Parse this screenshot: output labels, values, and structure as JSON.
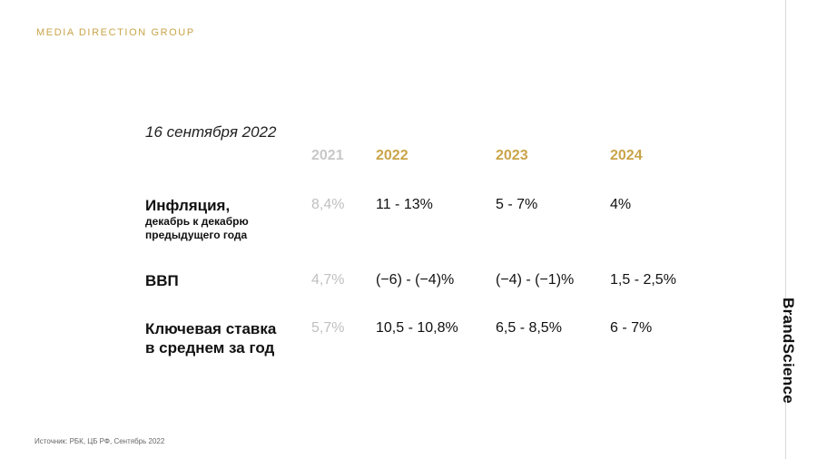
{
  "header": {
    "brand": "MEDIA DIRECTION GROUP"
  },
  "side": {
    "brand_vertical": "BrandScience"
  },
  "main": {
    "date": "16 сентября 2022",
    "years": [
      "2021",
      "2022",
      "2023",
      "2024"
    ],
    "rows": [
      {
        "title": "Инфляция,",
        "subtitle_line1": "декабрь к декабрю",
        "subtitle_line2": "предыдущего года",
        "values": [
          "8,4%",
          "11 - 13%",
          "5 - 7%",
          "4%"
        ]
      },
      {
        "title": "ВВП",
        "values": [
          "4,7%",
          "(−6) - (−4)%",
          "(−4) - (−1)%",
          "1,5 - 2,5%"
        ]
      },
      {
        "title_line1": "Ключевая ставка",
        "title_line2": "в среднем за год",
        "values": [
          "5,7%",
          "10,5 - 10,8%",
          "6,5 - 8,5%",
          "6 - 7%"
        ]
      }
    ]
  },
  "footer": {
    "source": "Источник: РБК, ЦБ РФ, Сентябрь 2022"
  },
  "colors": {
    "gold": "#c9a44a",
    "past": "#c0c0c0",
    "text": "#111111"
  }
}
